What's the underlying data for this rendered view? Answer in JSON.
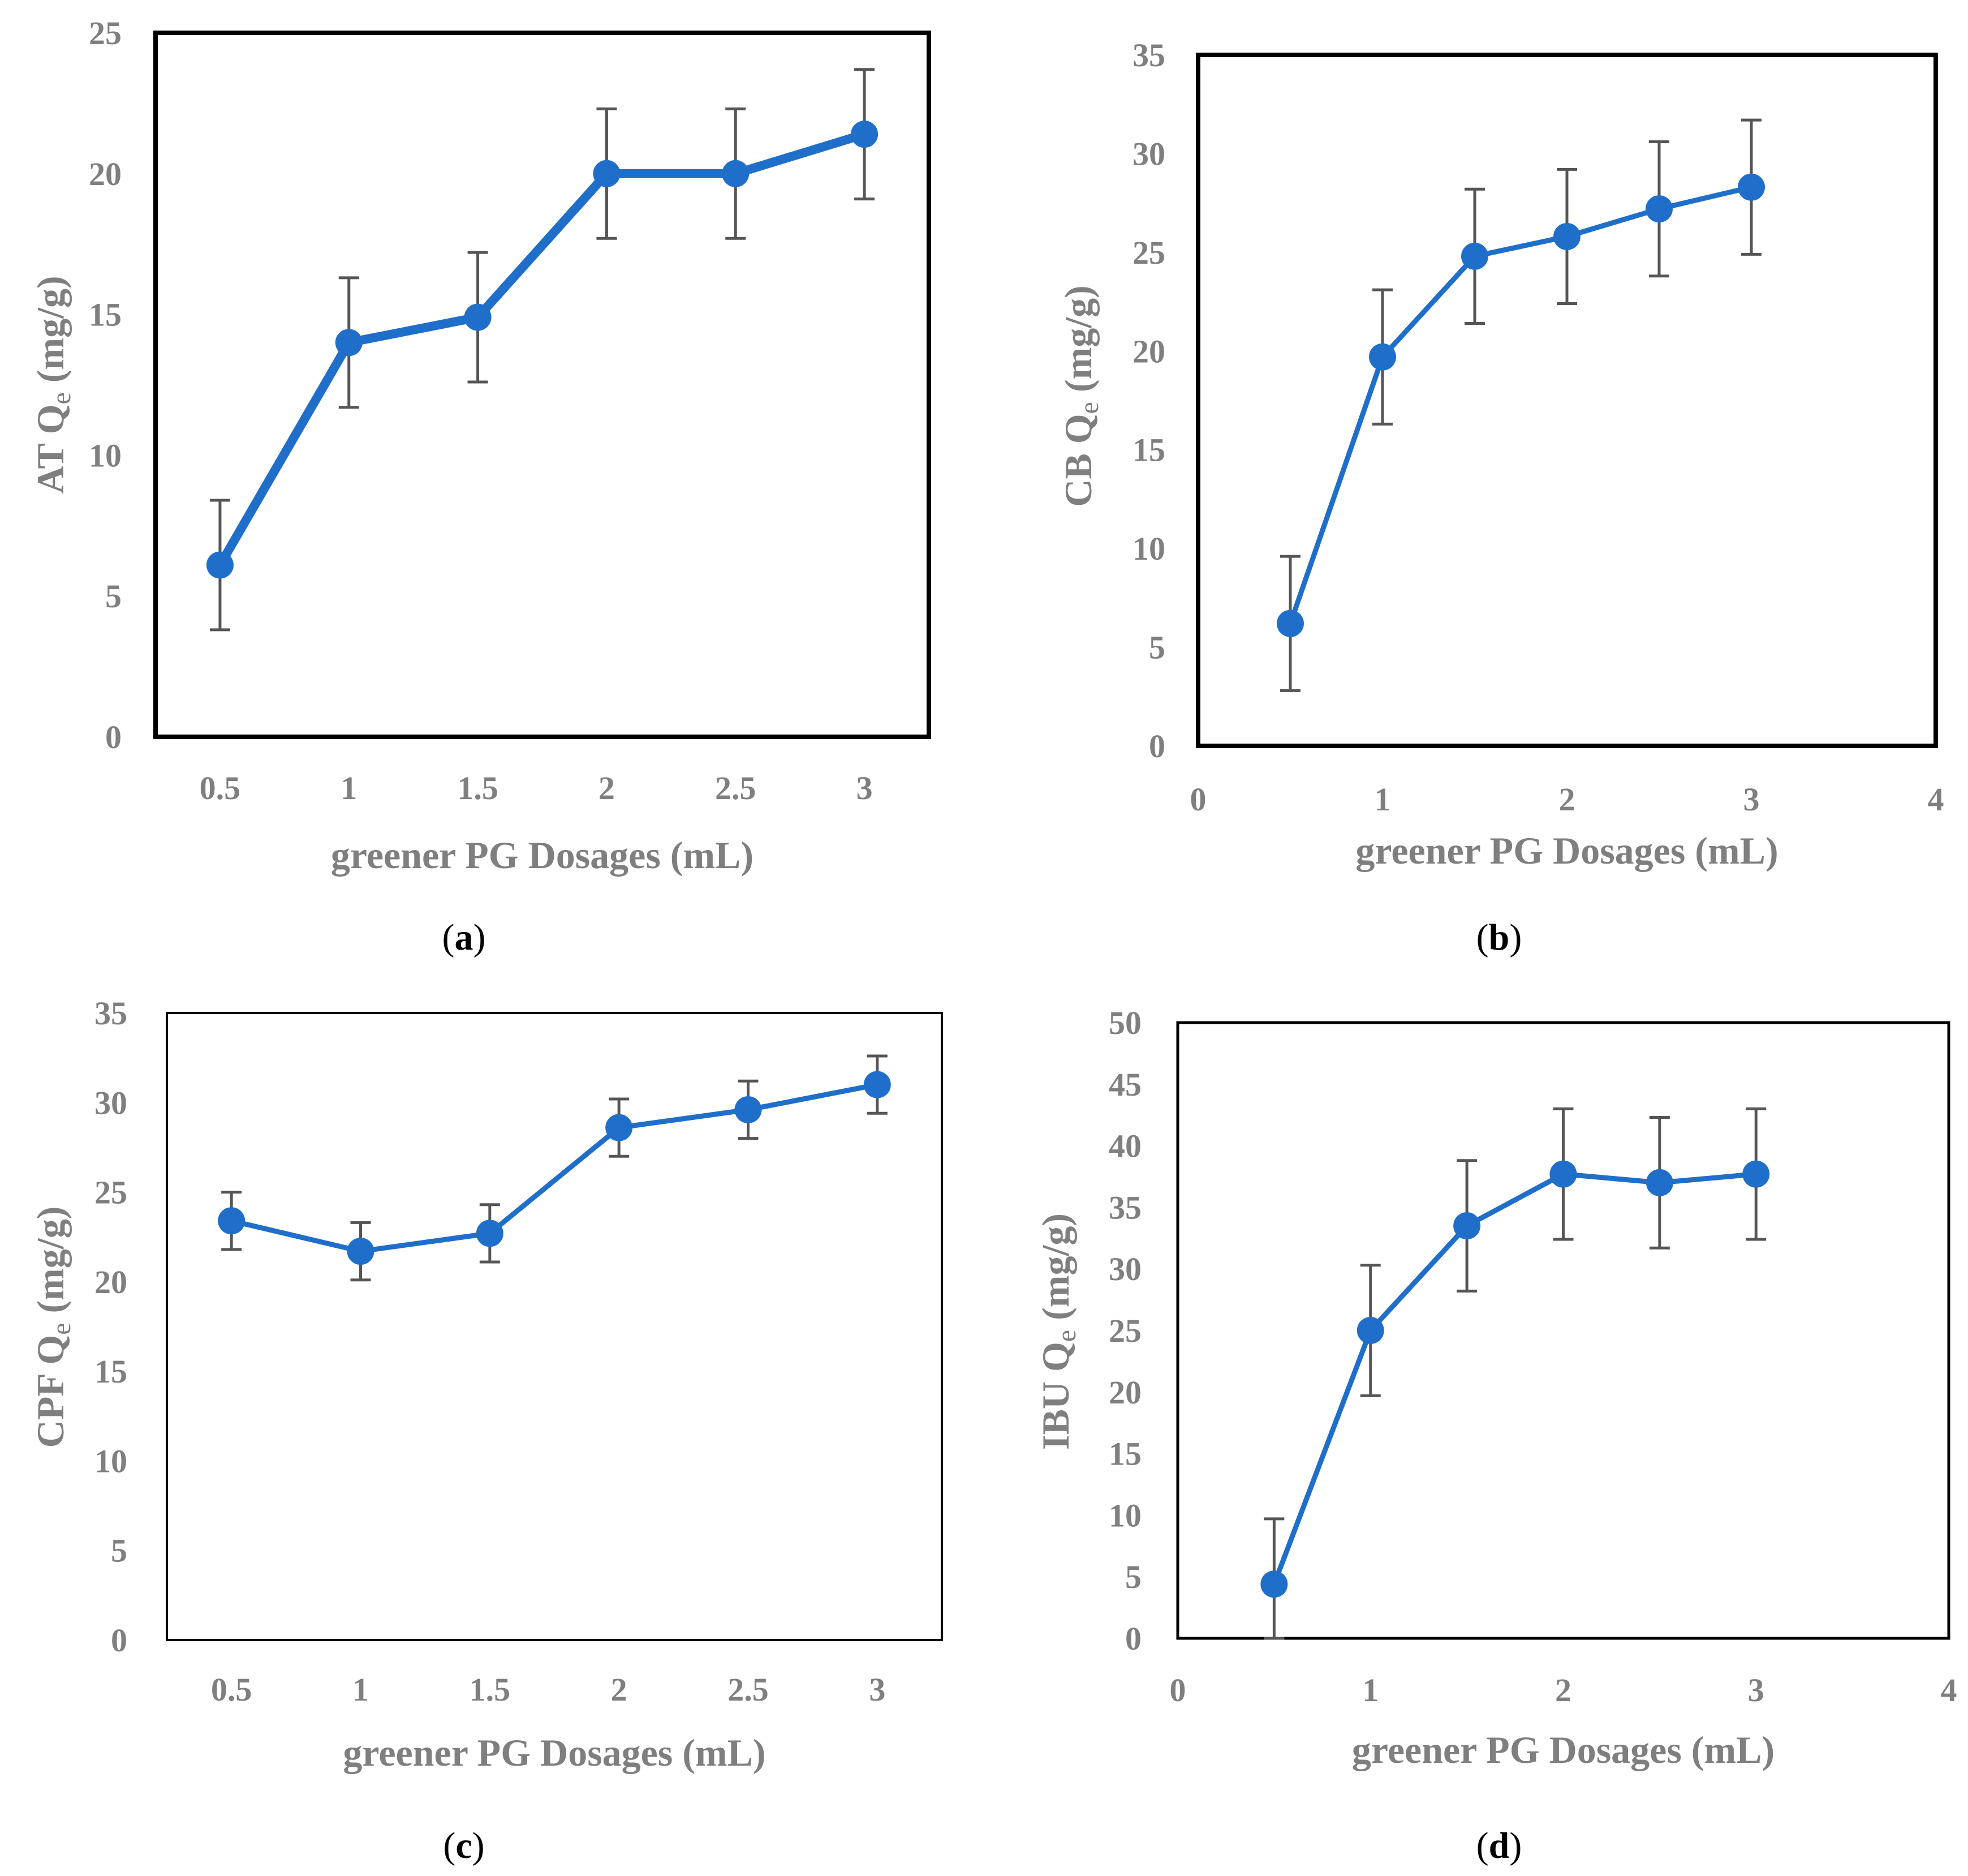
{
  "chart_data": [
    {
      "type": "line",
      "panel": "a",
      "caption": {
        "open": "(",
        "letter": "a",
        "close": ")"
      },
      "xaxis_kind": "category",
      "categories": [
        "0.5",
        "1",
        "1.5",
        "2",
        "2.5",
        "3"
      ],
      "x": [
        0.5,
        1,
        1.5,
        2,
        2.5,
        3
      ],
      "values": [
        6.1,
        14.0,
        14.9,
        20.0,
        20.0,
        21.4
      ],
      "errors": [
        2.3,
        2.3,
        2.3,
        2.3,
        2.3,
        2.3
      ],
      "ylabel_main": "AT Q",
      "ylabel_sub": "e",
      "ylabel_tail": " (mg/g)",
      "xlabel": "greener PG Dosages (mL)",
      "ylim": [
        0,
        25
      ],
      "yticks": [
        "0",
        "5",
        "10",
        "15",
        "20",
        "25"
      ],
      "line_weight": "thick",
      "color": "#1f6fca",
      "error_color": "#555555"
    },
    {
      "type": "scatter",
      "panel": "b",
      "caption": {
        "open": "(",
        "letter": "b",
        "close": ")"
      },
      "xaxis_kind": "value",
      "x": [
        0.5,
        1,
        1.5,
        2,
        2.5,
        3
      ],
      "values": [
        6.2,
        19.7,
        24.8,
        25.8,
        27.2,
        28.3
      ],
      "errors": [
        3.4,
        3.4,
        3.4,
        3.4,
        3.4,
        3.4
      ],
      "xlim": [
        0,
        4
      ],
      "xticks": [
        "0",
        "1",
        "2",
        "3",
        "4"
      ],
      "ylabel_main": "CB Q",
      "ylabel_sub": "e",
      "ylabel_tail": " (mg/g)",
      "xlabel": "greener PG Dosages (mL)",
      "ylim": [
        0,
        35
      ],
      "yticks": [
        "0",
        "5",
        "10",
        "15",
        "20",
        "25",
        "30",
        "35"
      ],
      "line_weight": "normal",
      "color": "#1f6fca",
      "error_color": "#555555"
    },
    {
      "type": "line",
      "panel": "c",
      "caption": {
        "open": "(",
        "letter": "c",
        "close": ")"
      },
      "xaxis_kind": "category",
      "categories": [
        "0.5",
        "1",
        "1.5",
        "2",
        "2.5",
        "3"
      ],
      "x": [
        0.5,
        1,
        1.5,
        2,
        2.5,
        3
      ],
      "values": [
        23.4,
        21.7,
        22.7,
        28.6,
        29.6,
        31.0
      ],
      "errors": [
        1.6,
        1.6,
        1.6,
        1.6,
        1.6,
        1.6
      ],
      "ylabel_main": "CPF Q",
      "ylabel_sub": "e",
      "ylabel_tail": " (mg/g)",
      "xlabel": "greener PG Dosages (mL)",
      "ylim": [
        0,
        35
      ],
      "yticks": [
        "0",
        "5",
        "10",
        "15",
        "20",
        "25",
        "30",
        "35"
      ],
      "line_weight": "normal",
      "color": "#1f6fca",
      "error_color": "#555555"
    },
    {
      "type": "scatter",
      "panel": "d",
      "caption": {
        "open": "(",
        "letter": "d",
        "close": ")"
      },
      "xaxis_kind": "value",
      "x": [
        0.5,
        1,
        1.5,
        2,
        2.5,
        3
      ],
      "values": [
        4.4,
        25.0,
        33.5,
        37.7,
        37.0,
        37.7
      ],
      "errors": [
        5.3,
        5.3,
        5.3,
        5.3,
        5.3,
        5.3
      ],
      "xlim": [
        0,
        4
      ],
      "xticks": [
        "0",
        "1",
        "2",
        "3",
        "4"
      ],
      "ylabel_main": "IBU Q",
      "ylabel_sub": "e",
      "ylabel_tail": " (mg/g)",
      "xlabel": "greener PG Dosages (mL)",
      "ylim": [
        0,
        50
      ],
      "yticks": [
        "0",
        "5",
        "10",
        "15",
        "20",
        "25",
        "30",
        "35",
        "40",
        "45",
        "50"
      ],
      "line_weight": "normal",
      "color": "#1f6fca",
      "error_color": "#555555"
    }
  ]
}
